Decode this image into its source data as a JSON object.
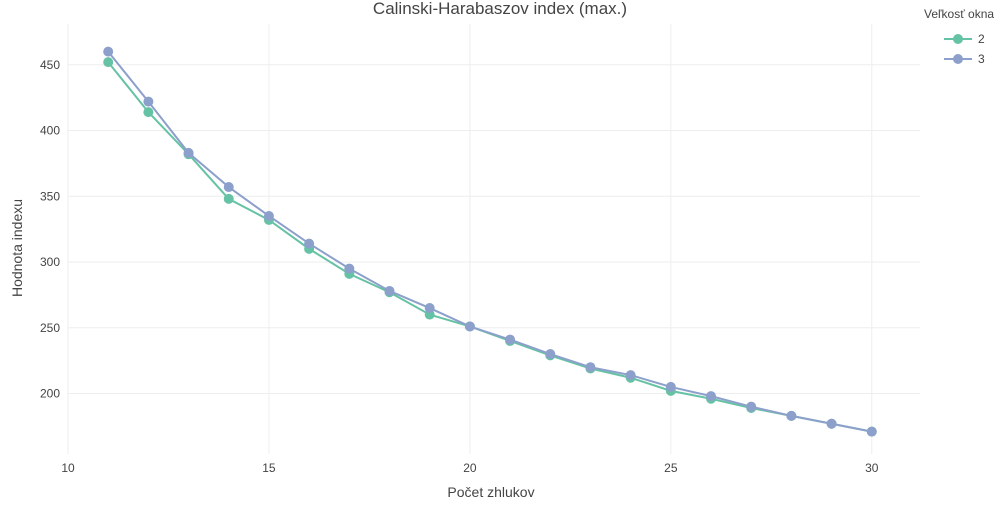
{
  "chart_data": {
    "type": "line",
    "title": "Calinski-Harabaszov index (max.)",
    "xlabel": "Počet zhlukov",
    "ylabel": "Hodnota indexu",
    "x": [
      11,
      12,
      13,
      14,
      15,
      16,
      17,
      18,
      19,
      20,
      21,
      22,
      23,
      24,
      25,
      26,
      27,
      28,
      29,
      30
    ],
    "xlim": [
      10,
      31.2
    ],
    "ylim": [
      154,
      481
    ],
    "x_ticks": [
      10,
      15,
      20,
      25,
      30
    ],
    "y_ticks": [
      200,
      250,
      300,
      350,
      400,
      450
    ],
    "grid": true,
    "legend": {
      "title": "Veľkosť okna",
      "position": "top-right"
    },
    "series": [
      {
        "name": "2",
        "color": "#66c2a5",
        "values": [
          452,
          414,
          382,
          348,
          332,
          310,
          291,
          277,
          260,
          251,
          240,
          229,
          219,
          212,
          202,
          196,
          189,
          183,
          177,
          171
        ]
      },
      {
        "name": "3",
        "color": "#8da0cb",
        "values": [
          460,
          422,
          383,
          357,
          335,
          314,
          295,
          278,
          265,
          251,
          241,
          230,
          220,
          214,
          205,
          198,
          190,
          183,
          177,
          171
        ]
      }
    ]
  }
}
